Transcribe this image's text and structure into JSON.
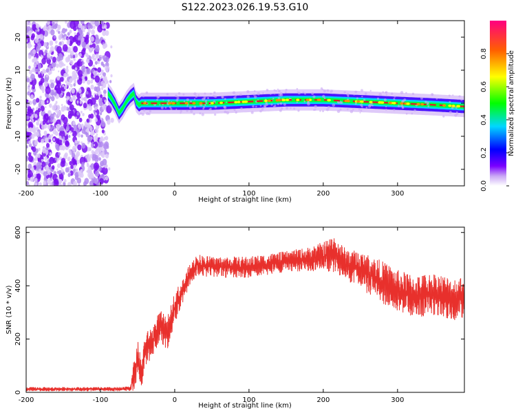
{
  "figure": {
    "title": "S122.2023.026.19.53.G10"
  },
  "colors": {
    "snr_line": "#e8302c",
    "ridge": "#e02020",
    "scale": [
      "#ffffff",
      "#c9a6f5",
      "#7a00ff",
      "#0000ff",
      "#00d7ff",
      "#00ff00",
      "#ffff00",
      "#ff6000",
      "#ff0080"
    ]
  },
  "chart_data": [
    {
      "type": "heatmap",
      "title": "S122.2023.026.19.53.G10",
      "xlabel": "Height of straight line (km)",
      "ylabel": "Frequency (Hz)",
      "xlim": [
        -200,
        390
      ],
      "ylim": [
        -25,
        25
      ],
      "x_ticks": [
        -200,
        -100,
        0,
        100,
        200,
        300
      ],
      "y_ticks": [
        -20,
        -10,
        0,
        10,
        20
      ],
      "x_tick_labels": [
        "-200",
        "-100",
        "0",
        "100",
        "200",
        "300"
      ],
      "y_tick_labels": [
        "-20",
        "-10",
        "0",
        "10",
        "20"
      ],
      "colorbar": {
        "label": "Normalized spectral amplitude",
        "range": [
          0,
          1
        ],
        "ticks": [
          0.0,
          0.2,
          0.4,
          0.6,
          0.8
        ],
        "tick_labels": [
          "0.0",
          "0.2",
          "0.4",
          "0.6",
          "0.8"
        ]
      },
      "noise_region_x": [
        -200,
        -90
      ],
      "ridge": {
        "x": [
          -90,
          -85,
          -80,
          -75,
          -70,
          -65,
          -60,
          -55,
          -52,
          -48,
          -45,
          -40,
          0,
          50,
          100,
          150,
          200,
          250,
          300,
          350,
          390
        ],
        "frequency": [
          3,
          1.5,
          -0.5,
          -3,
          -1.5,
          0.5,
          2,
          3,
          0.5,
          -0.5,
          0,
          0,
          0,
          0,
          0.5,
          1,
          1,
          0.5,
          0,
          -0.5,
          -1
        ]
      }
    },
    {
      "type": "line",
      "xlabel": "Height of straight line (km)",
      "ylabel": "SNR (10 * v/v)",
      "xlim": [
        -200,
        390
      ],
      "ylim": [
        0,
        620
      ],
      "x_ticks": [
        -200,
        -100,
        0,
        100,
        200,
        300
      ],
      "y_ticks": [
        0,
        200,
        400,
        600
      ],
      "x_tick_labels": [
        "-200",
        "-100",
        "0",
        "100",
        "200",
        "300"
      ],
      "y_tick_labels": [
        "0",
        "200",
        "400",
        "600"
      ],
      "series": [
        {
          "x": [
            -200,
            -150,
            -100,
            -70,
            -60,
            -55,
            -50,
            -45,
            -40,
            -30,
            -20,
            -10,
            0,
            10,
            20,
            30,
            50,
            100,
            150,
            180,
            200,
            215,
            230,
            250,
            275,
            300,
            325,
            350,
            375,
            390
          ],
          "y": [
            12,
            12,
            12,
            12,
            15,
            60,
            130,
            60,
            160,
            190,
            250,
            220,
            320,
            370,
            440,
            480,
            470,
            470,
            490,
            500,
            510,
            520,
            480,
            460,
            420,
            380,
            360,
            370,
            350,
            360
          ],
          "amplitude": [
            8,
            8,
            8,
            8,
            10,
            60,
            70,
            60,
            60,
            60,
            60,
            60,
            60,
            50,
            40,
            40,
            40,
            40,
            40,
            45,
            55,
            70,
            60,
            70,
            80,
            80,
            80,
            80,
            80,
            80
          ]
        }
      ]
    }
  ]
}
